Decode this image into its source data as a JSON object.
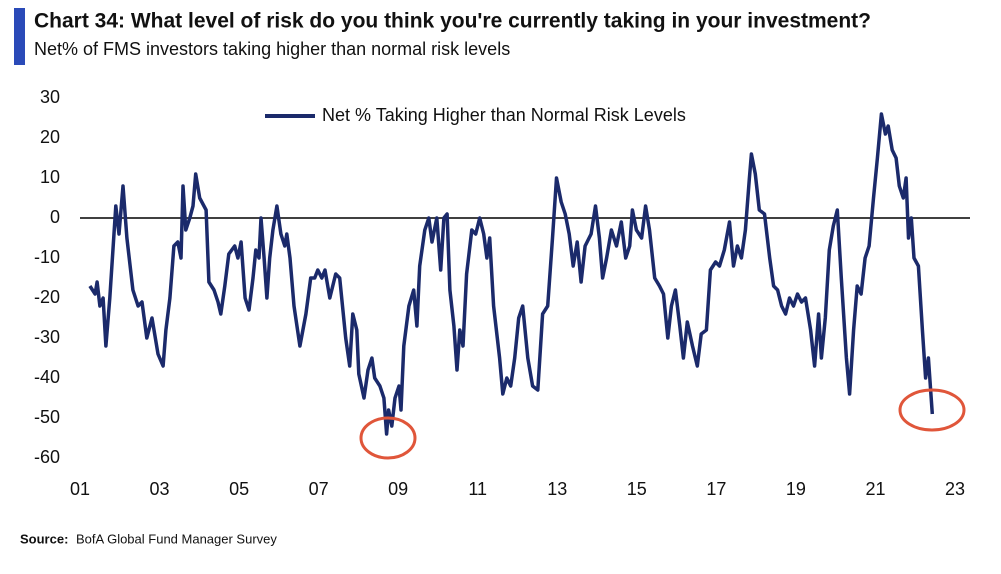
{
  "chart_data": {
    "type": "line",
    "title": "Chart 34: What level of risk do you think you're currently taking in your investment?",
    "subtitle": "Net% of FMS investors taking higher than normal risk levels",
    "source_label": "Source:",
    "source": "BofA Global Fund Manager Survey",
    "xlim": [
      2001,
      2023
    ],
    "xticks": [
      {
        "value": 2001,
        "label": "01"
      },
      {
        "value": 2003,
        "label": "03"
      },
      {
        "value": 2005,
        "label": "05"
      },
      {
        "value": 2007,
        "label": "07"
      },
      {
        "value": 2009,
        "label": "09"
      },
      {
        "value": 2011,
        "label": "11"
      },
      {
        "value": 2013,
        "label": "13"
      },
      {
        "value": 2015,
        "label": "15"
      },
      {
        "value": 2017,
        "label": "17"
      },
      {
        "value": 2019,
        "label": "19"
      },
      {
        "value": 2021,
        "label": "21"
      },
      {
        "value": 2023,
        "label": "23"
      }
    ],
    "ylim": [
      -60,
      30
    ],
    "yticks": [
      30,
      20,
      10,
      0,
      -10,
      -20,
      -30,
      -40,
      -50,
      -60
    ],
    "x": [
      2001.25,
      2001.38,
      2001.43,
      2001.5,
      2001.58,
      2001.65,
      2001.75,
      2001.9,
      2001.98,
      2002.08,
      2002.18,
      2002.33,
      2002.46,
      2002.56,
      2002.68,
      2002.81,
      2002.96,
      2003.09,
      2003.16,
      2003.26,
      2003.36,
      2003.46,
      2003.54,
      2003.59,
      2003.66,
      2003.76,
      2003.84,
      2003.91,
      2004.01,
      2004.17,
      2004.24,
      2004.37,
      2004.47,
      2004.54,
      2004.64,
      2004.74,
      2004.89,
      2004.97,
      2005.05,
      2005.15,
      2005.25,
      2005.35,
      2005.42,
      2005.5,
      2005.55,
      2005.63,
      2005.7,
      2005.77,
      2005.85,
      2005.95,
      2006.05,
      2006.15,
      2006.2,
      2006.28,
      2006.38,
      2006.53,
      2006.68,
      2006.8,
      2006.9,
      2006.98,
      2007.08,
      2007.16,
      2007.28,
      2007.43,
      2007.53,
      2007.68,
      2007.78,
      2007.86,
      2007.96,
      2008.01,
      2008.14,
      2008.24,
      2008.34,
      2008.41,
      2008.54,
      2008.64,
      2008.71,
      2008.76,
      2008.84,
      2008.92,
      2009.02,
      2009.07,
      2009.14,
      2009.27,
      2009.39,
      2009.47,
      2009.54,
      2009.67,
      2009.77,
      2009.85,
      2009.97,
      2010.07,
      2010.15,
      2010.23,
      2010.3,
      2010.4,
      2010.48,
      2010.55,
      2010.63,
      2010.72,
      2010.85,
      2010.95,
      2011.05,
      2011.15,
      2011.23,
      2011.3,
      2011.4,
      2011.55,
      2011.63,
      2011.73,
      2011.83,
      2011.93,
      2012.03,
      2012.13,
      2012.26,
      2012.38,
      2012.51,
      2012.63,
      2012.76,
      2012.88,
      2012.98,
      2013.1,
      2013.2,
      2013.3,
      2013.4,
      2013.5,
      2013.6,
      2013.7,
      2013.85,
      2013.96,
      2014.06,
      2014.14,
      2014.24,
      2014.36,
      2014.49,
      2014.61,
      2014.72,
      2014.82,
      2014.89,
      2014.99,
      2015.12,
      2015.22,
      2015.32,
      2015.45,
      2015.57,
      2015.67,
      2015.78,
      2015.87,
      2015.97,
      2016.08,
      2016.17,
      2016.27,
      2016.4,
      2016.52,
      2016.62,
      2016.75,
      2016.85,
      2016.98,
      2017.08,
      2017.2,
      2017.33,
      2017.43,
      2017.53,
      2017.63,
      2017.73,
      2017.83,
      2017.88,
      2017.98,
      2018.08,
      2018.21,
      2018.34,
      2018.44,
      2018.54,
      2018.64,
      2018.74,
      2018.84,
      2018.94,
      2019.04,
      2019.14,
      2019.24,
      2019.37,
      2019.47,
      2019.57,
      2019.64,
      2019.74,
      2019.84,
      2019.94,
      2020.04,
      2020.14,
      2020.27,
      2020.35,
      2020.45,
      2020.54,
      2020.64,
      2020.74,
      2020.84,
      2020.95,
      2021.05,
      2021.15,
      2021.25,
      2021.32,
      2021.42,
      2021.52,
      2021.6,
      2021.7,
      2021.77,
      2021.83,
      2021.9,
      2021.97,
      2022.08,
      2022.18,
      2022.26,
      2022.33,
      2022.43
    ],
    "series": [
      {
        "name": "Net % Taking Higher than Normal Risk Levels",
        "color": "#1b2a6b",
        "values": [
          -17,
          -19,
          -16,
          -22,
          -20,
          -32,
          -20,
          3,
          -4,
          8,
          -5,
          -18,
          -22,
          -21,
          -30,
          -25,
          -34,
          -37,
          -28,
          -20,
          -7,
          -6,
          -10,
          8,
          -3,
          0,
          3,
          11,
          5,
          2,
          -16,
          -18,
          -21,
          -24,
          -17,
          -9,
          -7,
          -10,
          -6,
          -20,
          -23,
          -15,
          -8,
          -10,
          0,
          -10,
          -20,
          -10,
          -3,
          3,
          -4,
          -7,
          -4,
          -10,
          -22,
          -32,
          -24,
          -15,
          -15,
          -13,
          -15,
          -13,
          -20,
          -14,
          -15,
          -30,
          -37,
          -24,
          -28,
          -39,
          -45,
          -38,
          -35,
          -40,
          -42,
          -45,
          -54,
          -48,
          -52,
          -45,
          -42,
          -48,
          -32,
          -22,
          -18,
          -27,
          -12,
          -3,
          0,
          -6,
          0,
          -13,
          0,
          1,
          -18,
          -27,
          -38,
          -28,
          -32,
          -14,
          -3,
          -4,
          0,
          -4,
          -10,
          -5,
          -22,
          -35,
          -44,
          -40,
          -42,
          -35,
          -25,
          -22,
          -35,
          -42,
          -43,
          -24,
          -22,
          -5,
          10,
          4,
          1,
          -4,
          -12,
          -6,
          -16,
          -7,
          -4,
          3,
          -5,
          -15,
          -10,
          -3,
          -7,
          -1,
          -10,
          -7,
          2,
          -3,
          -5,
          3,
          -3,
          -15,
          -17,
          -19,
          -30,
          -22,
          -18,
          -27,
          -35,
          -26,
          -32,
          -37,
          -29,
          -28,
          -13,
          -11,
          -12,
          -8,
          -1,
          -12,
          -7,
          -10,
          -3,
          10,
          16,
          11,
          2,
          1,
          -10,
          -17,
          -18,
          -22,
          -24,
          -20,
          -22,
          -19,
          -21,
          -20,
          -28,
          -37,
          -24,
          -35,
          -25,
          -8,
          -2,
          2,
          -15,
          -35,
          -44,
          -28,
          -17,
          -19,
          -10,
          -7,
          5,
          15,
          26,
          21,
          23,
          17,
          15,
          8,
          5,
          10,
          -5,
          0,
          -10,
          -12,
          -28,
          -40,
          -35,
          -49
        ]
      }
    ]
  }
}
